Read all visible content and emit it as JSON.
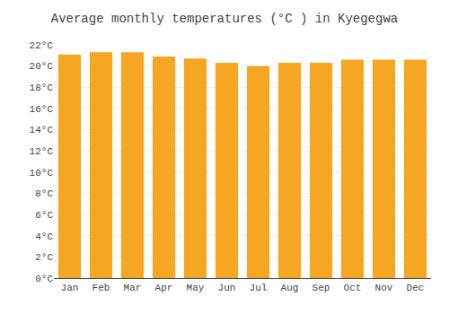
{
  "chart_data": {
    "type": "bar",
    "title": "Average monthly temperatures (°C ) in Kyegegwa",
    "categories": [
      "Jan",
      "Feb",
      "Mar",
      "Apr",
      "May",
      "Jun",
      "Jul",
      "Aug",
      "Sep",
      "Oct",
      "Nov",
      "Dec"
    ],
    "values": [
      21.1,
      21.3,
      21.3,
      20.9,
      20.7,
      20.3,
      20.0,
      20.3,
      20.3,
      20.6,
      20.6,
      20.6
    ],
    "color": "#F5A623",
    "ylim": [
      0,
      22
    ],
    "yticks": [
      {
        "value": 0,
        "label": "0°C"
      },
      {
        "value": 2,
        "label": "2°C"
      },
      {
        "value": 4,
        "label": "4°C"
      },
      {
        "value": 6,
        "label": "6°C"
      },
      {
        "value": 8,
        "label": "8°C"
      },
      {
        "value": 10,
        "label": "10°C"
      },
      {
        "value": 12,
        "label": "12°C"
      },
      {
        "value": 14,
        "label": "14°C"
      },
      {
        "value": 16,
        "label": "16°C"
      },
      {
        "value": 18,
        "label": "18°C"
      },
      {
        "value": 20,
        "label": "20°C"
      },
      {
        "value": 22,
        "label": "22°C"
      }
    ],
    "grid": true
  }
}
